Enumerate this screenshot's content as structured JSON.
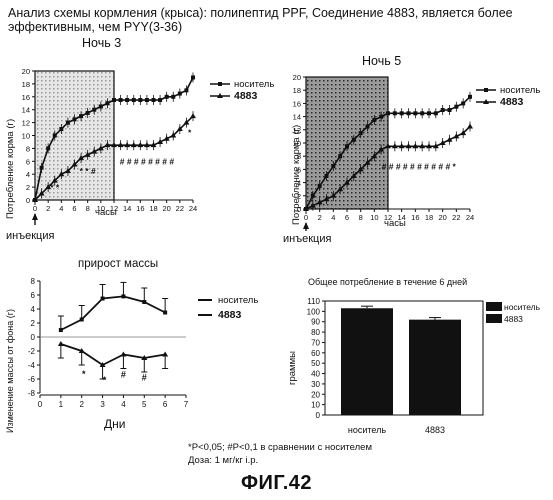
{
  "header": {
    "line1": "Анализ схемы кормления (крыса): полипептид PPF, Соединение 4883, является более",
    "line2": "эффективным, чем PYY(3-36)"
  },
  "footnotes": {
    "line1": "*P<0,05; #P<0,1 в сравнении с носителем",
    "line2": "Доза: 1 мг/кг i.p."
  },
  "figure_label": "ФИГ.42",
  "chart_data": [
    {
      "type": "line",
      "title": "Ночь 3",
      "xlabel": "часы",
      "ylabel": "Потребление корма (г)",
      "xlim": [
        0,
        24
      ],
      "ylim": [
        0,
        20
      ],
      "xticks": [
        0,
        2,
        4,
        6,
        8,
        10,
        12,
        14,
        16,
        18,
        20,
        22,
        24
      ],
      "yticks": [
        0,
        2,
        4,
        6,
        8,
        10,
        12,
        14,
        16,
        18,
        20
      ],
      "dark_phase_hours": [
        0,
        12
      ],
      "annotation": "инъекция",
      "legend": [
        "носитель",
        "4883"
      ],
      "x": [
        0,
        1,
        2,
        3,
        4,
        5,
        6,
        7,
        8,
        9,
        10,
        11,
        12,
        13,
        14,
        15,
        16,
        17,
        18,
        19,
        20,
        21,
        22,
        23,
        24
      ],
      "series": [
        {
          "name": "носитель",
          "values": [
            0,
            5,
            8,
            10,
            11,
            12,
            12.5,
            13,
            13.5,
            14,
            14.5,
            15,
            15.5,
            15.5,
            15.5,
            15.5,
            15.5,
            15.5,
            15.5,
            15.5,
            16,
            16,
            16.5,
            17,
            19
          ]
        },
        {
          "name": "4883",
          "values": [
            0,
            1,
            2,
            3,
            4,
            4.5,
            5.5,
            6.5,
            7,
            7.5,
            8,
            8.5,
            8.5,
            8.5,
            8.5,
            8.5,
            8.5,
            8.5,
            8.5,
            9,
            9.5,
            10,
            11,
            12,
            13
          ]
        }
      ],
      "markers": [
        {
          "text": "* *",
          "x": 3,
          "y": 1.5
        },
        {
          "text": "* * #",
          "x": 8,
          "y": 4
        },
        {
          "text": "# # # # # # # #",
          "x": 17,
          "y": 5.5
        },
        {
          "text": "*",
          "x": 23.5,
          "y": 10
        }
      ]
    },
    {
      "type": "line",
      "title": "Ночь 5",
      "xlabel": "часы",
      "xlim": [
        0,
        24
      ],
      "ylim": [
        0,
        20
      ],
      "xticks": [
        0,
        2,
        4,
        6,
        8,
        10,
        12,
        14,
        16,
        18,
        20,
        22,
        24
      ],
      "yticks": [
        0,
        2,
        4,
        6,
        8,
        10,
        12,
        14,
        16,
        18,
        20
      ],
      "dark_phase_hours": [
        0,
        12
      ],
      "annotation": "инъекция",
      "legend": [
        "носитель",
        "4883"
      ],
      "x": [
        0,
        1,
        2,
        3,
        4,
        5,
        6,
        7,
        8,
        9,
        10,
        11,
        12,
        13,
        14,
        15,
        16,
        17,
        18,
        19,
        20,
        21,
        22,
        23,
        24
      ],
      "series": [
        {
          "name": "носитель",
          "values": [
            0,
            2,
            3.5,
            5,
            6.5,
            8,
            9.5,
            10.5,
            11.5,
            12.5,
            13.5,
            14,
            14.5,
            14.5,
            14.5,
            14.5,
            14.5,
            14.5,
            14.5,
            14.5,
            15,
            15,
            15.5,
            16,
            17
          ]
        },
        {
          "name": "4883",
          "values": [
            0,
            0.5,
            1,
            1.5,
            2,
            3,
            4,
            5,
            6,
            7,
            8,
            9,
            9.5,
            9.5,
            9.5,
            9.5,
            9.5,
            9.5,
            9.5,
            9.5,
            10,
            10.5,
            11,
            11.5,
            12.5
          ]
        }
      ],
      "markers": [
        {
          "text": "# # # # # # # # # # *",
          "x": 16.5,
          "y": 6
        }
      ]
    },
    {
      "type": "line",
      "title": "прирост массы",
      "xlabel": "Дни",
      "ylabel": "Изменение массы от фона (г)",
      "xlim": [
        0,
        7
      ],
      "ylim": [
        -8,
        8
      ],
      "xticks": [
        0,
        1,
        2,
        3,
        4,
        5,
        6,
        7
      ],
      "yticks": [
        -8,
        -6,
        -4,
        -2,
        0,
        2,
        4,
        6,
        8
      ],
      "legend": [
        "носитель",
        "4883"
      ],
      "x": [
        1,
        2,
        3,
        4,
        5,
        6
      ],
      "series": [
        {
          "name": "носитель",
          "values": [
            1,
            2.5,
            5.5,
            5.8,
            5,
            3.5
          ]
        },
        {
          "name": "4883",
          "values": [
            -1,
            -2,
            -4,
            -2.5,
            -3,
            -2.5
          ]
        }
      ],
      "markers": [
        {
          "text": "*",
          "x": 2.1,
          "y": -5.7
        },
        {
          "text": "*",
          "x": 3.1,
          "y": -6.6
        },
        {
          "text": "#",
          "x": 4,
          "y": -5.8
        },
        {
          "text": "#",
          "x": 5,
          "y": -6.2
        }
      ]
    },
    {
      "type": "bar",
      "title": "Общее потребление в течение 6 дней",
      "ylabel": "граммы",
      "categories": [
        "носитель",
        "4883"
      ],
      "values": [
        103,
        92
      ],
      "errors": [
        2,
        2
      ],
      "ylim": [
        0,
        110
      ],
      "yticks": [
        0,
        10,
        20,
        30,
        40,
        50,
        60,
        70,
        80,
        90,
        100,
        110
      ],
      "legend": [
        "носитель",
        "4883"
      ]
    }
  ]
}
